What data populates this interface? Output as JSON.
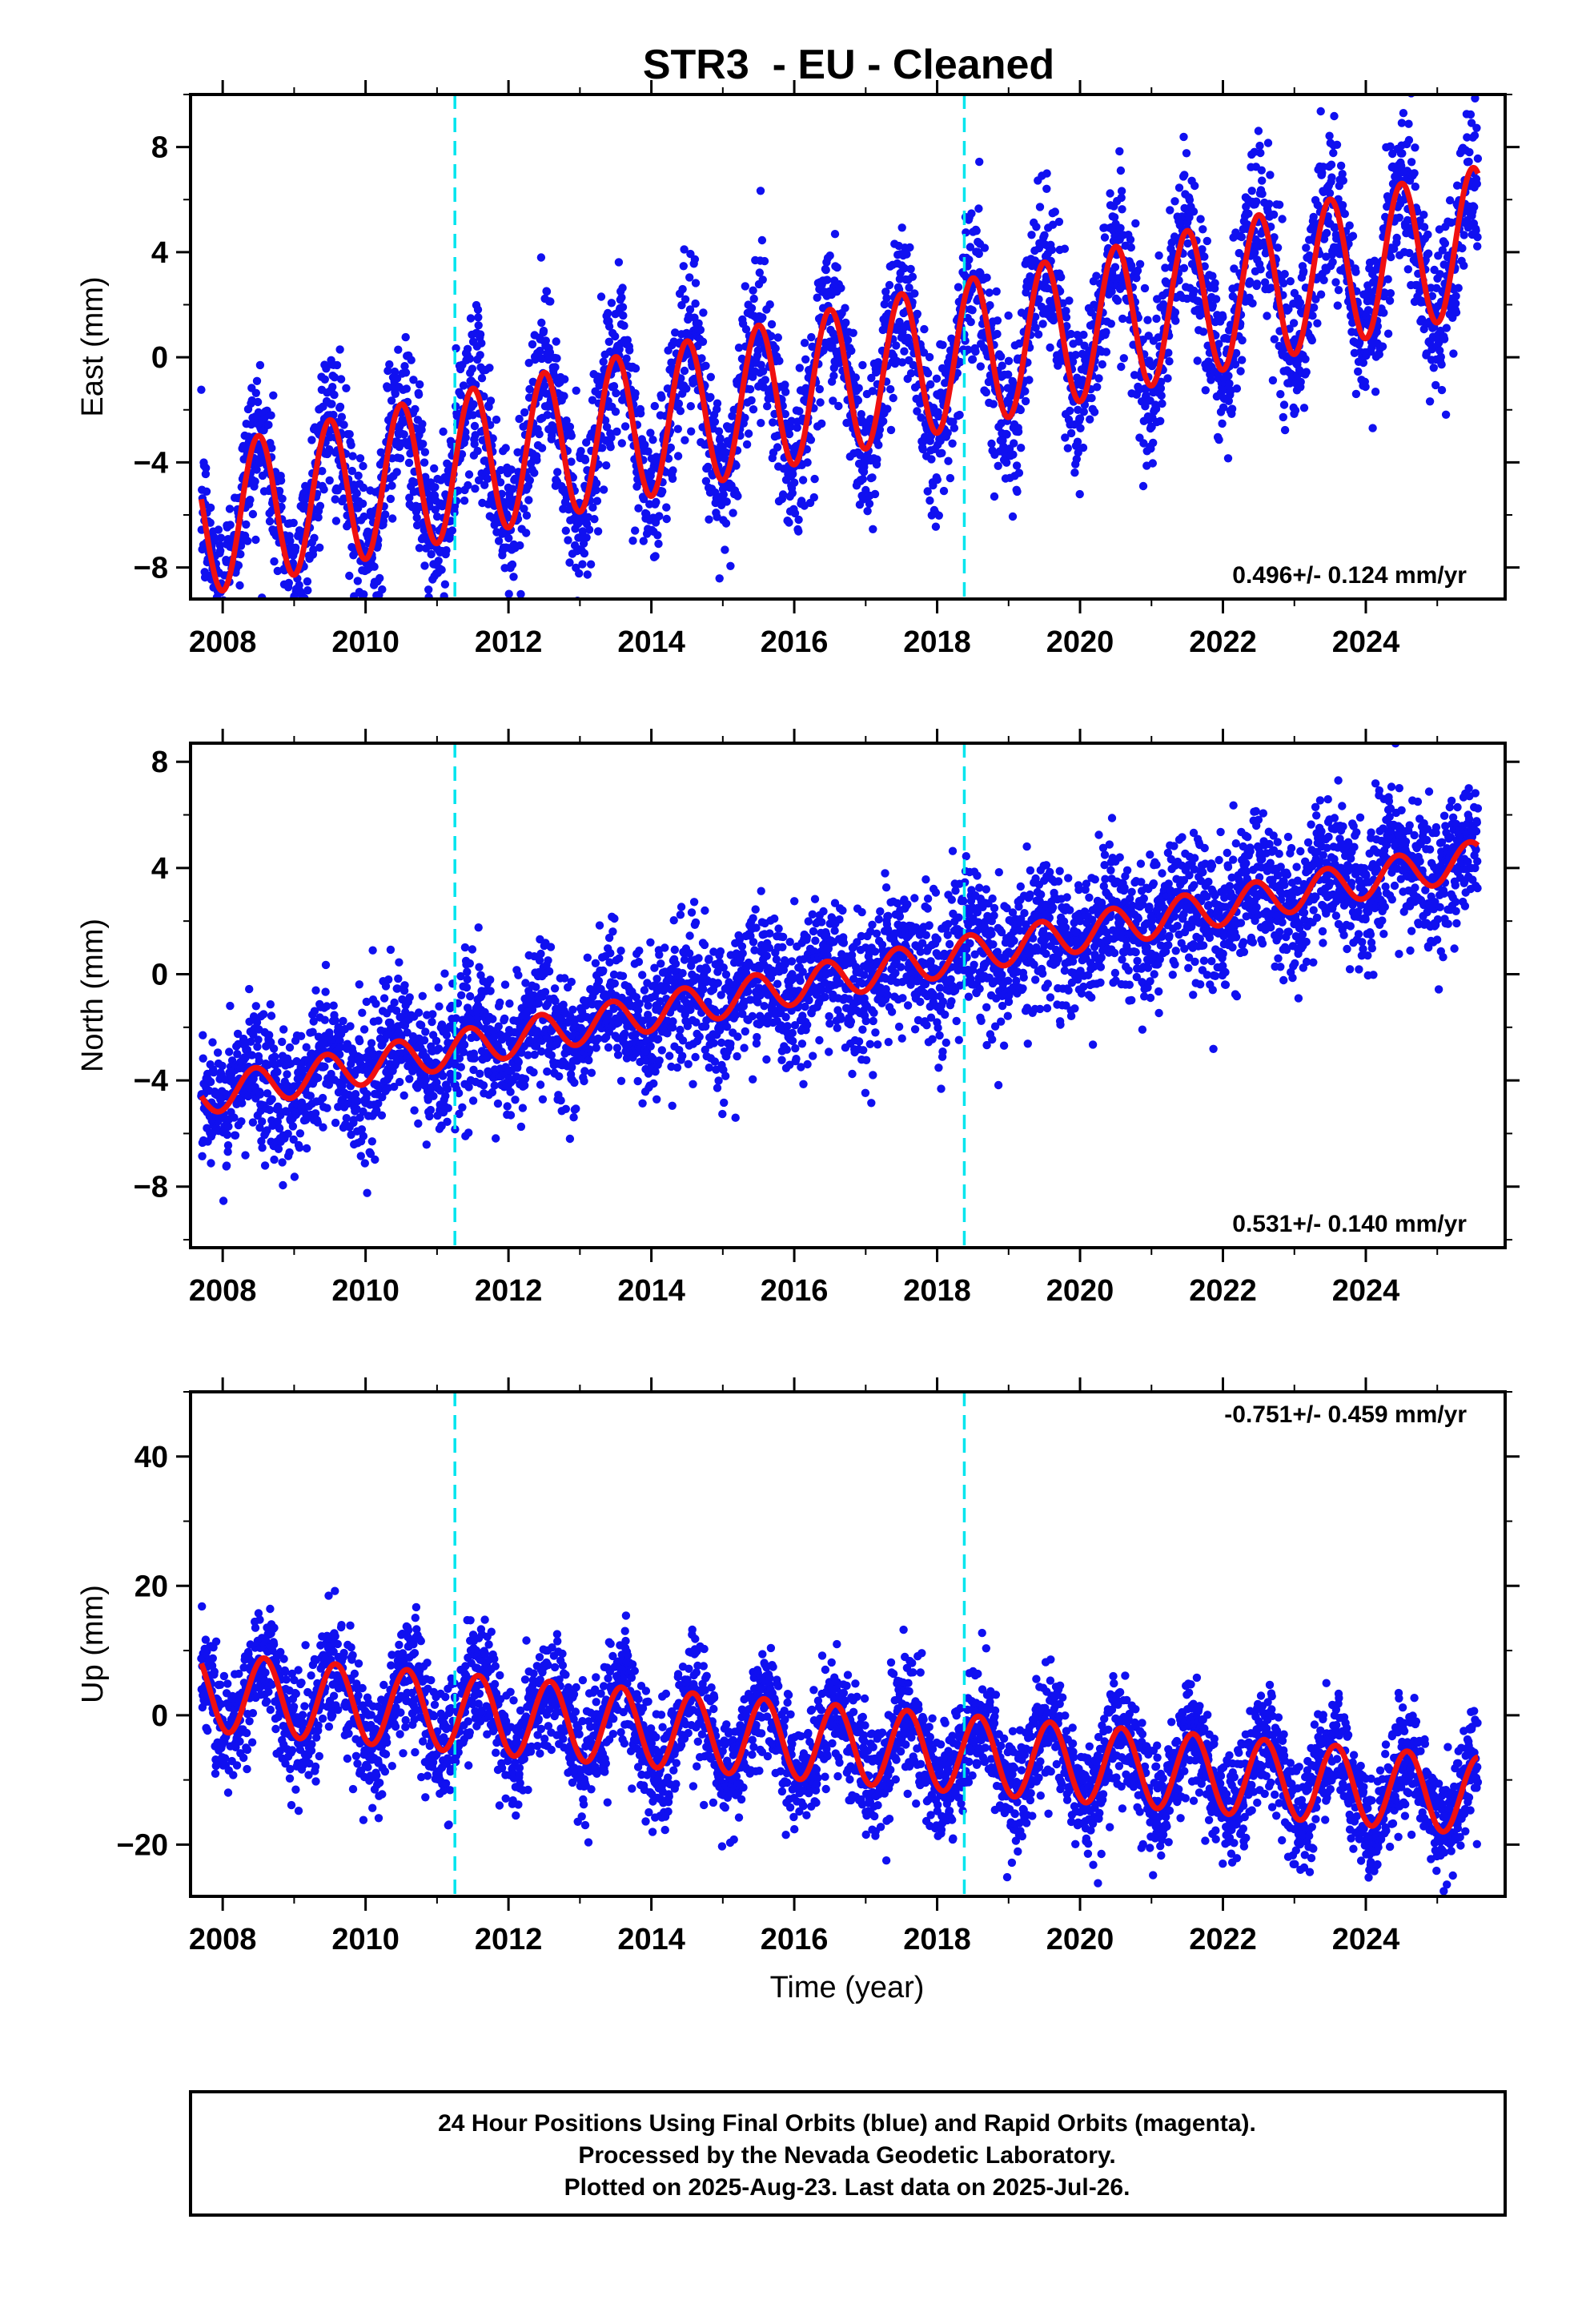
{
  "colors": {
    "points": "#1010f0",
    "model": "#f01010",
    "steps": "#00e5ee",
    "frame": "#000000"
  },
  "chart_data": {
    "type": "scatter",
    "title": "STR3  - EU - Cleaned",
    "xlabel": "Time (year)",
    "x_ticks": [
      "2008",
      "2010",
      "2012",
      "2014",
      "2016",
      "2018",
      "2020",
      "2022",
      "2024"
    ],
    "xlim": [
      2007.55,
      2025.95
    ],
    "step_epochs": [
      2011.25,
      2018.38
    ],
    "data_start": 2007.7,
    "data_end": 2025.57,
    "panels": [
      {
        "component": "East",
        "ylabel": "East (mm)",
        "ylim": [
          -9.2,
          10.0
        ],
        "y_ticks": [
          "8",
          "4",
          "0",
          "−4",
          "−8"
        ],
        "rate": "0.496+/- 0.124 mm/yr",
        "model": {
          "start_value": -5.4,
          "slope_mm_per_yr": 0.6,
          "annual_amplitude": 2.8,
          "peak_phase": 0.5,
          "scatter_sd": 1.5
        }
      },
      {
        "component": "North",
        "ylabel": "North (mm)",
        "ylim": [
          -10.3,
          8.7
        ],
        "y_ticks": [
          "8",
          "4",
          "0",
          "−4",
          "−8"
        ],
        "rate": "0.531+/- 0.140 mm/yr",
        "model": {
          "start_value": -4.6,
          "slope_mm_per_yr": 0.5,
          "annual_amplitude": 0.7,
          "peak_phase": 0.45,
          "scatter_sd": 1.3
        }
      },
      {
        "component": "Up",
        "ylabel": "Up (mm)",
        "ylim": [
          -28,
          50
        ],
        "y_ticks": [
          "40",
          "20",
          "0",
          "−20"
        ],
        "rate": "-0.751+/- 0.459 mm/yr",
        "model": {
          "start_value": 8.0,
          "slope_mm_per_yr": -0.9,
          "annual_amplitude": 6.0,
          "peak_phase": 0.58,
          "scatter_sd": 4.5
        }
      }
    ]
  },
  "footer": {
    "line1": "24 Hour Positions Using Final Orbits (blue) and Rapid Orbits (magenta).",
    "line2": "Processed by the Nevada Geodetic Laboratory.",
    "line3": "Plotted on 2025-Aug-23. Last data on 2025-Jul-26."
  }
}
